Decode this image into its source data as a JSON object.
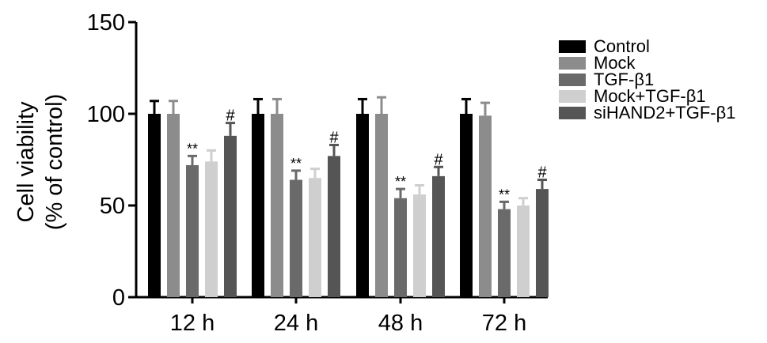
{
  "chart_data": {
    "type": "bar",
    "ylabel_line1": "Cell viability",
    "ylabel_line2": "(% of control)",
    "ylim": [
      0,
      150
    ],
    "yticks": [
      "0",
      "50",
      "100",
      "150"
    ],
    "categories": [
      "12 h",
      "24 h",
      "48 h",
      "72 h"
    ],
    "series": [
      {
        "name": "Control",
        "color": "#000000",
        "values": [
          100,
          100,
          100,
          100
        ],
        "errors": [
          7,
          8,
          8,
          8
        ],
        "annotations": [
          "",
          "",
          "",
          ""
        ]
      },
      {
        "name": "Mock",
        "color": "#8c8c8c",
        "values": [
          100,
          100,
          100,
          99
        ],
        "errors": [
          7,
          8,
          9,
          7
        ],
        "annotations": [
          "",
          "",
          "",
          ""
        ]
      },
      {
        "name": "TGF-β1",
        "color": "#6a6a6a",
        "values": [
          72,
          64,
          54,
          48
        ],
        "errors": [
          5,
          5,
          5,
          4
        ],
        "annotations": [
          "**",
          "**",
          "**",
          "**"
        ]
      },
      {
        "name": "Mock+TGF-β1",
        "color": "#cfcfcf",
        "values": [
          74,
          65,
          56,
          50
        ],
        "errors": [
          6,
          5,
          5,
          4
        ],
        "annotations": [
          "",
          "",
          "",
          ""
        ]
      },
      {
        "name": "siHAND2+TGF-β1",
        "color": "#555555",
        "values": [
          88,
          77,
          66,
          59
        ],
        "errors": [
          7,
          6,
          5,
          5
        ],
        "annotations": [
          "#",
          "#",
          "#",
          "#"
        ]
      }
    ],
    "legend_position": "right"
  }
}
